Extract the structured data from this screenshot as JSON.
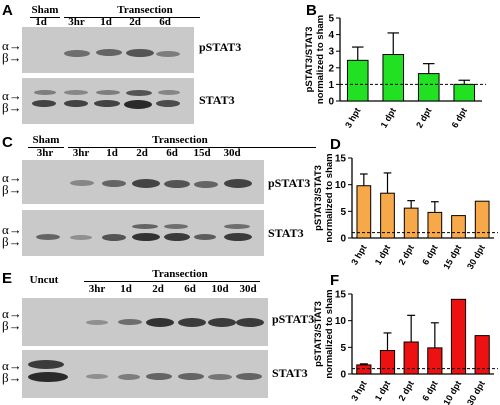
{
  "panels": {
    "A": {
      "letter": "A",
      "group_left": "Sham",
      "group_right": "Transection",
      "lanes": [
        "1d",
        "3hr",
        "1d",
        "2d",
        "6d"
      ],
      "blots": [
        "pSTAT3",
        "STAT3"
      ],
      "isoform_labels": [
        "α",
        "β"
      ]
    },
    "C": {
      "letter": "C",
      "group_left": "Sham",
      "group_right": "Transection",
      "lanes": [
        "3hr",
        "3hr",
        "1d",
        "2d",
        "6d",
        "15d",
        "30d"
      ],
      "blots": [
        "pSTAT3",
        "STAT3"
      ],
      "isoform_labels": [
        "α",
        "β"
      ]
    },
    "E": {
      "letter": "E",
      "group_left": "Uncut",
      "group_right": "Transection",
      "lanes": [
        "3hr",
        "1d",
        "2d",
        "6d",
        "10d",
        "30d"
      ],
      "blots": [
        "pSTAT3",
        "STAT3"
      ],
      "isoform_labels": [
        "α",
        "β"
      ]
    }
  },
  "chart_data": [
    {
      "panel": "B",
      "type": "bar",
      "ylabel": "pSTAT3/STAT3 normalized to sham",
      "ylabel_lines": [
        "pSTAT3/STAT3",
        "normalized to sham"
      ],
      "categories": [
        "3 hpt",
        "1 dpt",
        "2 dpt",
        "6 dpt"
      ],
      "values": [
        2.45,
        2.8,
        1.65,
        1.0
      ],
      "errors": [
        0.8,
        1.3,
        0.6,
        0.25
      ],
      "ylim": [
        0,
        5
      ],
      "yticks": [
        0,
        1,
        2,
        3,
        4,
        5
      ],
      "reference_line": 1,
      "color": "#22e022"
    },
    {
      "panel": "D",
      "type": "bar",
      "ylabel": "pSTAT3/STAT3 normalized to sham",
      "ylabel_lines": [
        "pSTAT3/STAT3",
        "normalized to sham"
      ],
      "categories": [
        "3 hpt",
        "1 dpt",
        "2 dpt",
        "6 dpt",
        "15 dpt",
        "30 dpt"
      ],
      "values": [
        9.8,
        8.4,
        5.6,
        4.8,
        4.2,
        6.9
      ],
      "errors": [
        2.2,
        3.8,
        1.4,
        2.0,
        0,
        0
      ],
      "ylim": [
        0,
        15
      ],
      "yticks": [
        0,
        5,
        10,
        15
      ],
      "reference_line": 1,
      "color": "#f7a94a"
    },
    {
      "panel": "F",
      "type": "bar",
      "ylabel": "pSTAT3/STAT3 normalized to sham",
      "ylabel_lines": [
        "pSTAT3/STAT3",
        "normalized to sham"
      ],
      "categories": [
        "3 hpt",
        "1 dpt",
        "2 dpt",
        "6 dpt",
        "10 dpt",
        "30 dpt"
      ],
      "values": [
        1.7,
        4.4,
        6.0,
        4.9,
        14.0,
        7.2
      ],
      "errors": [
        0.2,
        3.3,
        5.0,
        4.7,
        0,
        0
      ],
      "ylim": [
        0,
        15
      ],
      "yticks": [
        0,
        5,
        10,
        15
      ],
      "reference_line": 1,
      "color": "#ee1111"
    }
  ]
}
